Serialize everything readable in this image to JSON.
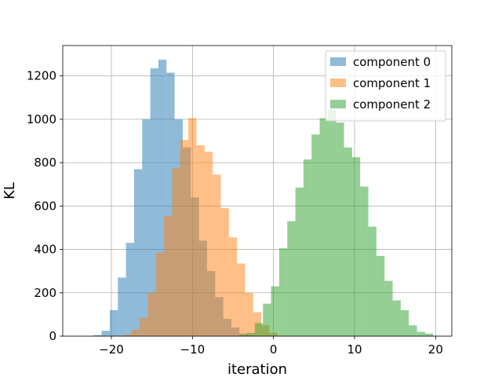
{
  "chart_data": {
    "type": "histogram",
    "xlabel": "iteration",
    "ylabel": "KL",
    "xlim": [
      -26,
      22
    ],
    "ylim": [
      0,
      1340
    ],
    "xticks": [
      -20,
      -10,
      0,
      10,
      20
    ],
    "yticks": [
      0,
      200,
      400,
      600,
      800,
      1000,
      1200
    ],
    "grid": true,
    "legend_position": "top-right",
    "series": [
      {
        "name": "component 0",
        "color": "#1f77b4",
        "opacity": 0.5,
        "bins": [
          {
            "x0": -22.2,
            "x1": -21.2,
            "count": 5
          },
          {
            "x0": -21.2,
            "x1": -20.2,
            "count": 25
          },
          {
            "x0": -20.2,
            "x1": -19.2,
            "count": 120
          },
          {
            "x0": -19.2,
            "x1": -18.2,
            "count": 270
          },
          {
            "x0": -18.2,
            "x1": -17.2,
            "count": 430
          },
          {
            "x0": -17.2,
            "x1": -16.2,
            "count": 770
          },
          {
            "x0": -16.2,
            "x1": -15.2,
            "count": 1000
          },
          {
            "x0": -15.2,
            "x1": -14.2,
            "count": 1235
          },
          {
            "x0": -14.2,
            "x1": -13.2,
            "count": 1275
          },
          {
            "x0": -13.2,
            "x1": -12.2,
            "count": 1215
          },
          {
            "x0": -12.2,
            "x1": -11.2,
            "count": 1000
          },
          {
            "x0": -11.2,
            "x1": -10.2,
            "count": 870
          },
          {
            "x0": -10.2,
            "x1": -9.2,
            "count": 640
          },
          {
            "x0": -9.2,
            "x1": -8.2,
            "count": 440
          },
          {
            "x0": -8.2,
            "x1": -7.2,
            "count": 300
          },
          {
            "x0": -7.2,
            "x1": -6.2,
            "count": 180
          },
          {
            "x0": -6.2,
            "x1": -5.2,
            "count": 80
          },
          {
            "x0": -5.2,
            "x1": -4.2,
            "count": 40
          },
          {
            "x0": -4.2,
            "x1": -3.2,
            "count": 12
          },
          {
            "x0": -3.2,
            "x1": -2.2,
            "count": 4
          }
        ]
      },
      {
        "name": "component 1",
        "color": "#ff7f0e",
        "opacity": 0.5,
        "bins": [
          {
            "x0": -18.5,
            "x1": -17.5,
            "count": 8
          },
          {
            "x0": -17.5,
            "x1": -16.5,
            "count": 30
          },
          {
            "x0": -16.5,
            "x1": -15.5,
            "count": 85
          },
          {
            "x0": -15.5,
            "x1": -14.5,
            "count": 200
          },
          {
            "x0": -14.5,
            "x1": -13.5,
            "count": 385
          },
          {
            "x0": -13.5,
            "x1": -12.5,
            "count": 555
          },
          {
            "x0": -12.5,
            "x1": -11.5,
            "count": 775
          },
          {
            "x0": -11.5,
            "x1": -10.5,
            "count": 905
          },
          {
            "x0": -10.5,
            "x1": -9.5,
            "count": 1005
          },
          {
            "x0": -9.5,
            "x1": -8.5,
            "count": 880
          },
          {
            "x0": -8.5,
            "x1": -7.5,
            "count": 850
          },
          {
            "x0": -7.5,
            "x1": -6.5,
            "count": 745
          },
          {
            "x0": -6.5,
            "x1": -5.5,
            "count": 590
          },
          {
            "x0": -5.5,
            "x1": -4.5,
            "count": 455
          },
          {
            "x0": -4.5,
            "x1": -3.5,
            "count": 335
          },
          {
            "x0": -3.5,
            "x1": -2.5,
            "count": 200
          },
          {
            "x0": -2.5,
            "x1": -1.5,
            "count": 110
          },
          {
            "x0": -1.5,
            "x1": -0.5,
            "count": 50
          },
          {
            "x0": -0.5,
            "x1": 0.5,
            "count": 15
          }
        ]
      },
      {
        "name": "component 2",
        "color": "#2ca02c",
        "opacity": 0.5,
        "bins": [
          {
            "x0": -4.3,
            "x1": -3.3,
            "count": 5
          },
          {
            "x0": -3.3,
            "x1": -2.3,
            "count": 15
          },
          {
            "x0": -2.3,
            "x1": -1.3,
            "count": 60
          },
          {
            "x0": -1.3,
            "x1": -0.3,
            "count": 150
          },
          {
            "x0": -0.3,
            "x1": 0.7,
            "count": 230
          },
          {
            "x0": 0.7,
            "x1": 1.7,
            "count": 405
          },
          {
            "x0": 1.7,
            "x1": 2.7,
            "count": 530
          },
          {
            "x0": 2.7,
            "x1": 3.7,
            "count": 685
          },
          {
            "x0": 3.7,
            "x1": 4.7,
            "count": 815
          },
          {
            "x0": 4.7,
            "x1": 5.7,
            "count": 930
          },
          {
            "x0": 5.7,
            "x1": 6.7,
            "count": 1005
          },
          {
            "x0": 6.7,
            "x1": 7.7,
            "count": 1045
          },
          {
            "x0": 7.7,
            "x1": 8.7,
            "count": 985
          },
          {
            "x0": 8.7,
            "x1": 9.7,
            "count": 870
          },
          {
            "x0": 9.7,
            "x1": 10.7,
            "count": 825
          },
          {
            "x0": 10.7,
            "x1": 11.7,
            "count": 690
          },
          {
            "x0": 11.7,
            "x1": 12.7,
            "count": 505
          },
          {
            "x0": 12.7,
            "x1": 13.7,
            "count": 370
          },
          {
            "x0": 13.7,
            "x1": 14.7,
            "count": 255
          },
          {
            "x0": 14.7,
            "x1": 15.7,
            "count": 165
          },
          {
            "x0": 15.7,
            "x1": 16.7,
            "count": 120
          },
          {
            "x0": 16.7,
            "x1": 17.7,
            "count": 50
          },
          {
            "x0": 17.7,
            "x1": 18.7,
            "count": 20
          },
          {
            "x0": 18.7,
            "x1": 19.7,
            "count": 12
          }
        ]
      }
    ]
  }
}
